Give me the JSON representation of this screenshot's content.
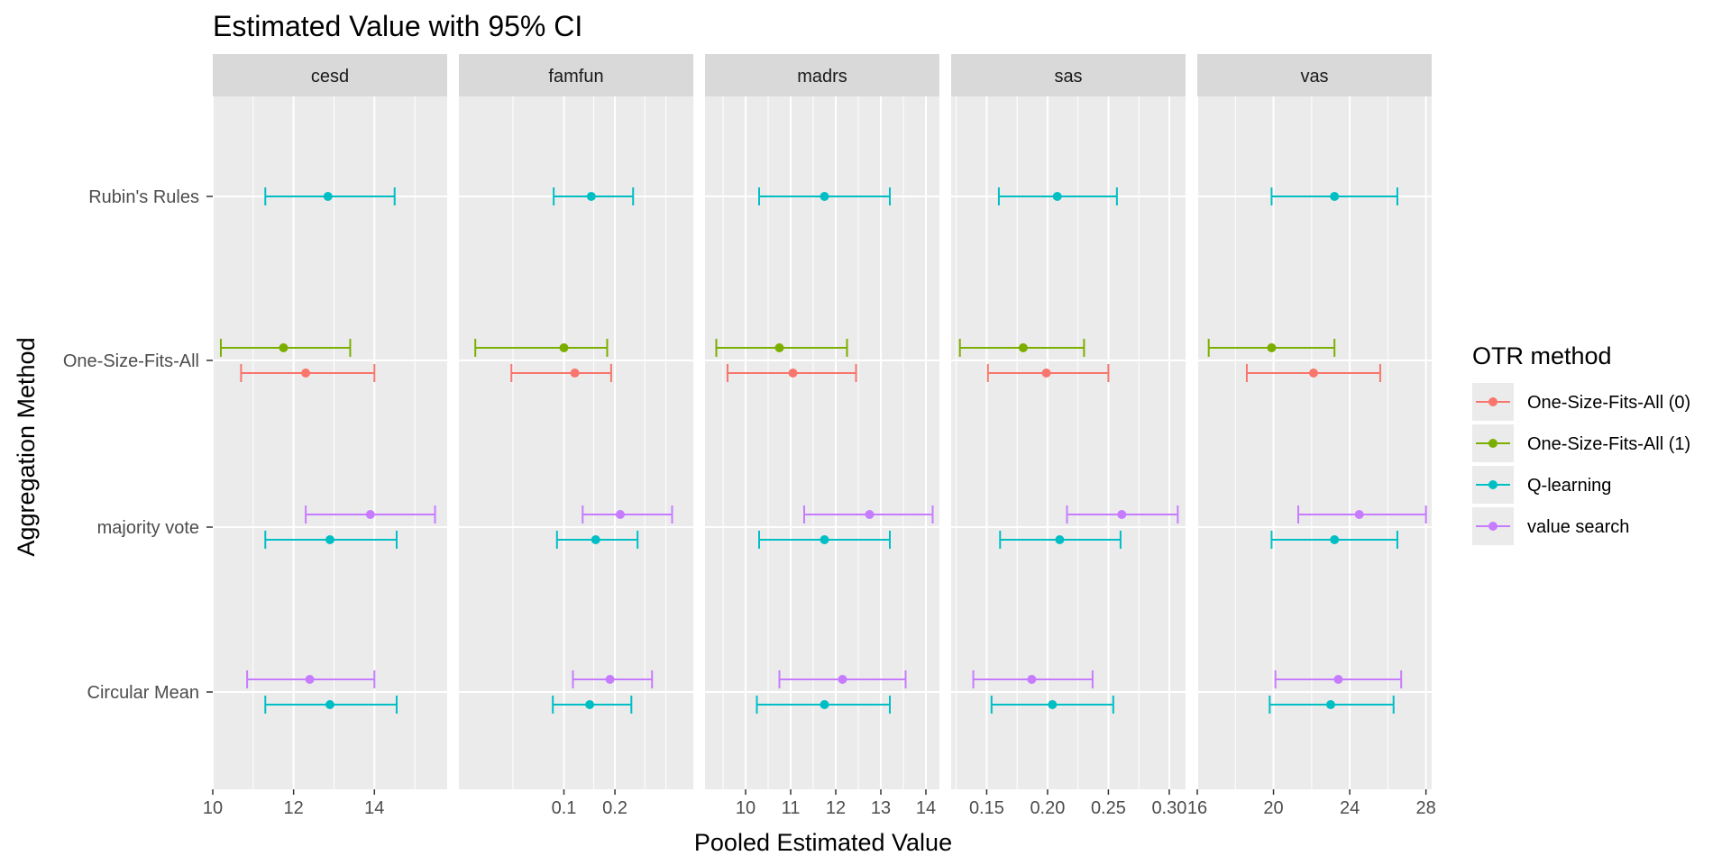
{
  "chart_data": {
    "type": "errorbar",
    "title": "Estimated Value with 95% CI",
    "xlabel": "Pooled Estimated Value",
    "ylabel": "Aggregation Method",
    "categories": [
      "Rubin's Rules",
      "One-Size-Fits-All",
      "majority vote",
      "Circular Mean"
    ],
    "legend": {
      "title": "OTR method",
      "position": "right",
      "entries": [
        "One-Size-Fits-All (0)",
        "One-Size-Fits-All (1)",
        "Q-learning",
        "value search"
      ]
    },
    "colors": {
      "One-Size-Fits-All (0)": "#F8766D",
      "One-Size-Fits-All (1)": "#7CAE00",
      "Q-learning": "#00BFC4",
      "value search": "#C77CFF"
    },
    "panels": [
      {
        "name": "cesd",
        "xlim": [
          10,
          15.8
        ],
        "xscale": "linear",
        "ticks": [
          10,
          12,
          14
        ],
        "tick_labels": [
          "10",
          "12",
          "14"
        ],
        "minor_ticks": [
          11,
          13,
          15
        ],
        "points": [
          {
            "category": "Rubin's Rules",
            "method": "Q-learning",
            "estimate": 12.85,
            "lower": 11.3,
            "upper": 14.5
          },
          {
            "category": "One-Size-Fits-All",
            "method": "One-Size-Fits-All (1)",
            "estimate": 11.75,
            "lower": 10.2,
            "upper": 13.4
          },
          {
            "category": "One-Size-Fits-All",
            "method": "One-Size-Fits-All (0)",
            "estimate": 12.3,
            "lower": 10.7,
            "upper": 14.0
          },
          {
            "category": "majority vote",
            "method": "value search",
            "estimate": 13.9,
            "lower": 12.3,
            "upper": 15.5
          },
          {
            "category": "majority vote",
            "method": "Q-learning",
            "estimate": 12.9,
            "lower": 11.3,
            "upper": 14.55
          },
          {
            "category": "Circular Mean",
            "method": "value search",
            "estimate": 12.4,
            "lower": 10.85,
            "upper": 14.0
          },
          {
            "category": "Circular Mean",
            "method": "Q-learning",
            "estimate": 12.9,
            "lower": 11.3,
            "upper": 14.55
          }
        ]
      },
      {
        "name": "famfun",
        "xlim": [
          0.024,
          0.58
        ],
        "xscale": "log",
        "ticks": [
          0.1,
          0.2
        ],
        "tick_labels": [
          "0.1",
          "0.2"
        ],
        "minor_ticks": [
          0.05,
          0.15,
          0.3,
          0.4
        ],
        "points": [
          {
            "category": "Rubin's Rules",
            "method": "Q-learning",
            "estimate": 0.145,
            "lower": 0.087,
            "upper": 0.256
          },
          {
            "category": "One-Size-Fits-All",
            "method": "One-Size-Fits-All (1)",
            "estimate": 0.1,
            "lower": 0.03,
            "upper": 0.18
          },
          {
            "category": "One-Size-Fits-All",
            "method": "One-Size-Fits-All (0)",
            "estimate": 0.116,
            "lower": 0.049,
            "upper": 0.19
          },
          {
            "category": "majority vote",
            "method": "value search",
            "estimate": 0.215,
            "lower": 0.129,
            "upper": 0.435
          },
          {
            "category": "majority vote",
            "method": "Q-learning",
            "estimate": 0.154,
            "lower": 0.091,
            "upper": 0.272
          },
          {
            "category": "Circular Mean",
            "method": "value search",
            "estimate": 0.187,
            "lower": 0.113,
            "upper": 0.331
          },
          {
            "category": "Circular Mean",
            "method": "Q-learning",
            "estimate": 0.142,
            "lower": 0.086,
            "upper": 0.25
          }
        ]
      },
      {
        "name": "madrs",
        "xlim": [
          9.1,
          14.3
        ],
        "xscale": "linear",
        "ticks": [
          10,
          11,
          12,
          13,
          14
        ],
        "tick_labels": [
          "10",
          "11",
          "12",
          "13",
          "14"
        ],
        "minor_ticks": [
          9.5,
          10.5,
          11.5,
          12.5,
          13.5
        ],
        "points": [
          {
            "category": "Rubin's Rules",
            "method": "Q-learning",
            "estimate": 11.75,
            "lower": 10.3,
            "upper": 13.2
          },
          {
            "category": "One-Size-Fits-All",
            "method": "One-Size-Fits-All (1)",
            "estimate": 10.75,
            "lower": 9.35,
            "upper": 12.25
          },
          {
            "category": "One-Size-Fits-All",
            "method": "One-Size-Fits-All (0)",
            "estimate": 11.05,
            "lower": 9.6,
            "upper": 12.45
          },
          {
            "category": "majority vote",
            "method": "value search",
            "estimate": 12.75,
            "lower": 11.3,
            "upper": 14.15
          },
          {
            "category": "majority vote",
            "method": "Q-learning",
            "estimate": 11.75,
            "lower": 10.3,
            "upper": 13.2
          },
          {
            "category": "Circular Mean",
            "method": "value search",
            "estimate": 12.15,
            "lower": 10.75,
            "upper": 13.55
          },
          {
            "category": "Circular Mean",
            "method": "Q-learning",
            "estimate": 11.75,
            "lower": 10.25,
            "upper": 13.2
          }
        ]
      },
      {
        "name": "sas",
        "xlim": [
          0.1208,
          0.3134
        ],
        "xscale": "linear",
        "ticks": [
          0.15,
          0.2,
          0.25,
          0.3
        ],
        "tick_labels": [
          "0.15",
          "0.20",
          "0.25",
          "0.30"
        ],
        "minor_ticks": [
          0.125,
          0.175,
          0.225,
          0.275
        ],
        "points": [
          {
            "category": "Rubin's Rules",
            "method": "Q-learning",
            "estimate": 0.208,
            "lower": 0.16,
            "upper": 0.257
          },
          {
            "category": "One-Size-Fits-All",
            "method": "One-Size-Fits-All (1)",
            "estimate": 0.18,
            "lower": 0.128,
            "upper": 0.23
          },
          {
            "category": "One-Size-Fits-All",
            "method": "One-Size-Fits-All (0)",
            "estimate": 0.199,
            "lower": 0.151,
            "upper": 0.25
          },
          {
            "category": "majority vote",
            "method": "value search",
            "estimate": 0.261,
            "lower": 0.216,
            "upper": 0.307
          },
          {
            "category": "majority vote",
            "method": "Q-learning",
            "estimate": 0.21,
            "lower": 0.161,
            "upper": 0.26
          },
          {
            "category": "Circular Mean",
            "method": "value search",
            "estimate": 0.187,
            "lower": 0.139,
            "upper": 0.237
          },
          {
            "category": "Circular Mean",
            "method": "Q-learning",
            "estimate": 0.204,
            "lower": 0.154,
            "upper": 0.254
          }
        ]
      },
      {
        "name": "vas",
        "xlim": [
          16,
          28.3
        ],
        "xscale": "linear",
        "ticks": [
          16,
          20,
          24,
          28
        ],
        "tick_labels": [
          "16",
          "20",
          "24",
          "28"
        ],
        "minor_ticks": [
          18,
          22,
          26
        ],
        "points": [
          {
            "category": "Rubin's Rules",
            "method": "Q-learning",
            "estimate": 23.2,
            "lower": 19.9,
            "upper": 26.5
          },
          {
            "category": "One-Size-Fits-All",
            "method": "One-Size-Fits-All (1)",
            "estimate": 19.9,
            "lower": 16.6,
            "upper": 23.2
          },
          {
            "category": "One-Size-Fits-All",
            "method": "One-Size-Fits-All (0)",
            "estimate": 22.1,
            "lower": 18.6,
            "upper": 25.6
          },
          {
            "category": "majority vote",
            "method": "value search",
            "estimate": 24.5,
            "lower": 21.3,
            "upper": 28.0
          },
          {
            "category": "majority vote",
            "method": "Q-learning",
            "estimate": 23.2,
            "lower": 19.9,
            "upper": 26.5
          },
          {
            "category": "Circular Mean",
            "method": "value search",
            "estimate": 23.4,
            "lower": 20.1,
            "upper": 26.7
          },
          {
            "category": "Circular Mean",
            "method": "Q-learning",
            "estimate": 23.0,
            "lower": 19.8,
            "upper": 26.3
          }
        ]
      }
    ]
  }
}
